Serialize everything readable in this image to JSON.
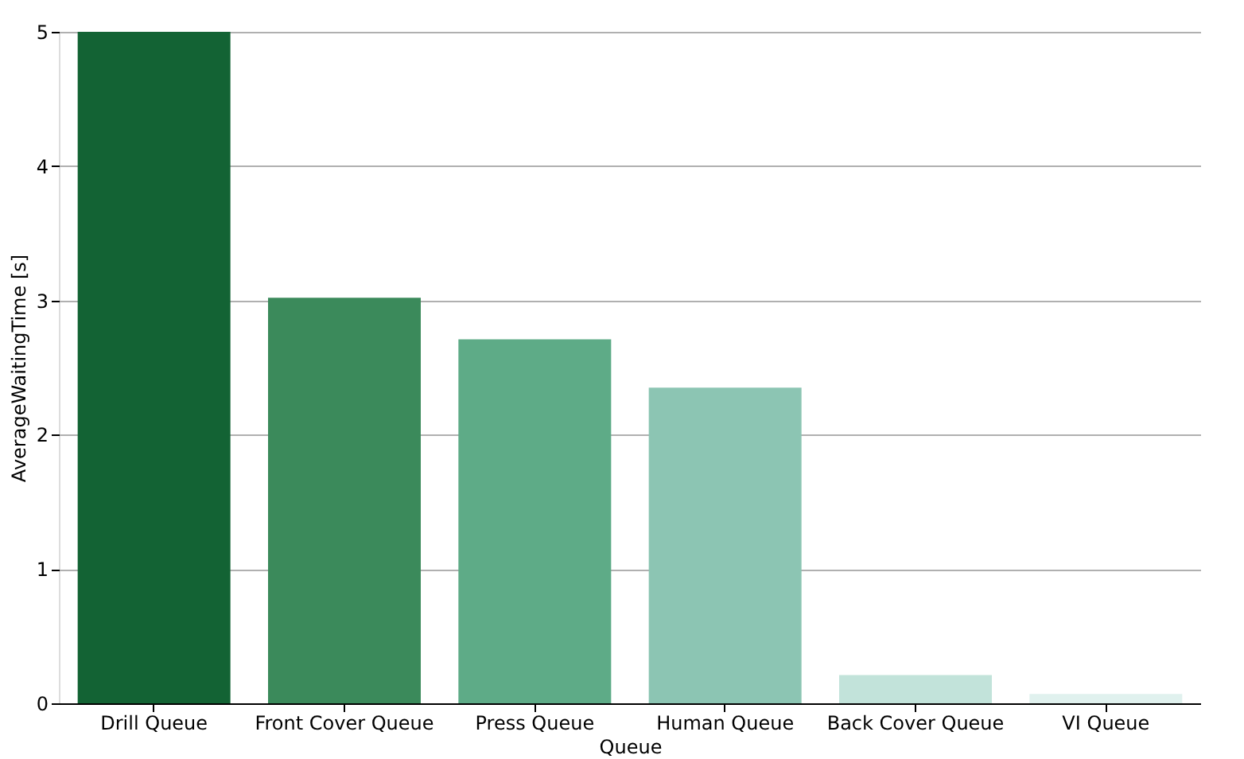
{
  "chart_data": {
    "type": "bar",
    "xlabel": "Queue",
    "ylabel": "AverageWaitingTime [s]",
    "categories": [
      "Drill Queue",
      "Front Cover Queue",
      "Press Queue",
      "Human Queue",
      "Back Cover Queue",
      "VI Queue"
    ],
    "values": [
      5.0,
      3.02,
      2.71,
      2.35,
      0.21,
      0.07
    ],
    "colors": [
      "#136334",
      "#3b8a5b",
      "#5eab87",
      "#8cc5b3",
      "#c2e3da",
      "#e0f1ee"
    ],
    "ylim": [
      0,
      5
    ],
    "yticks": [
      0,
      1,
      2,
      3,
      4,
      5
    ],
    "grid": "y"
  }
}
